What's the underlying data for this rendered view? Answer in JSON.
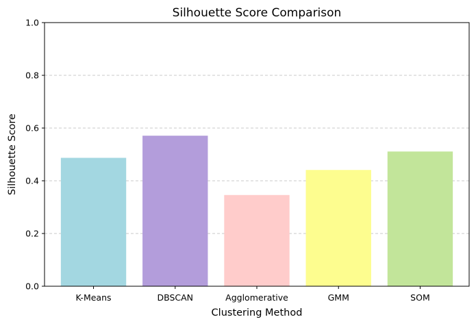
{
  "chart_data": {
    "type": "bar",
    "title": "Silhouette Score Comparison",
    "xlabel": "Clustering Method",
    "ylabel": "Silhouette Score",
    "categories": [
      "K-Means",
      "DBSCAN",
      "Agglomerative",
      "GMM",
      "SOM"
    ],
    "values": [
      0.487,
      0.571,
      0.346,
      0.441,
      0.511
    ],
    "colors": [
      "#a3d7e1",
      "#b39ddb",
      "#ffcccb",
      "#fdfd8f",
      "#c2e59a"
    ],
    "ylim": [
      0,
      1.0
    ],
    "yticks": [
      "0.0",
      "0.2",
      "0.4",
      "0.6",
      "0.8",
      "1.0"
    ],
    "ytick_values": [
      0.0,
      0.2,
      0.4,
      0.6,
      0.8,
      1.0
    ],
    "grid": "y-dashed",
    "legend": "none"
  }
}
